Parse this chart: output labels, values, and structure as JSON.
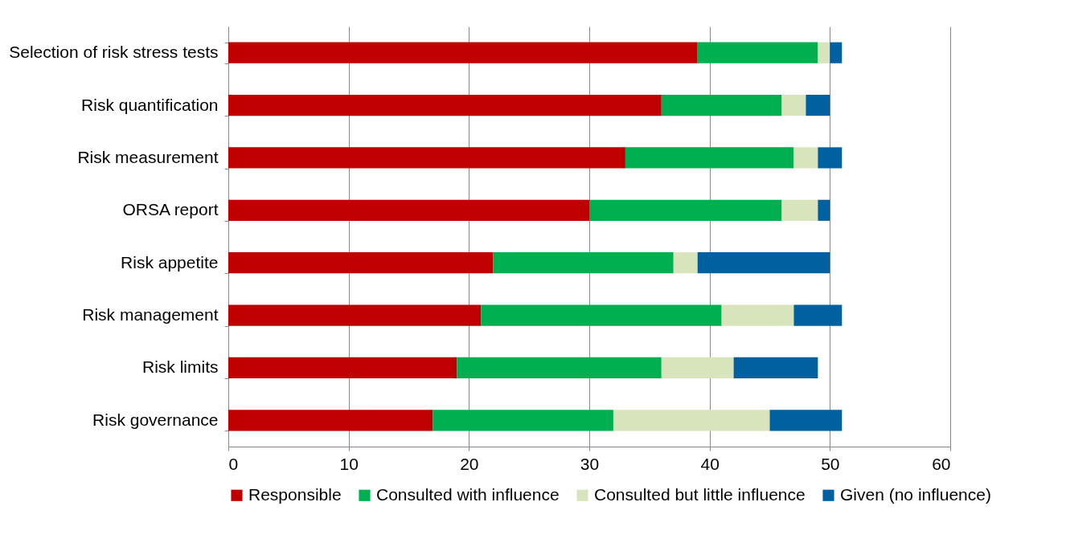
{
  "chart_data": {
    "type": "bar",
    "orientation": "horizontal",
    "stacked": true,
    "categories": [
      "Selection of risk stress tests",
      "Risk quantification",
      "Risk measurement",
      "ORSA report",
      "Risk appetite",
      "Risk management",
      "Risk limits",
      "Risk governance"
    ],
    "series": [
      {
        "name": "Responsible",
        "color": "#c00000",
        "values": [
          39,
          36,
          33,
          30,
          22,
          21,
          19,
          17
        ]
      },
      {
        "name": "Consulted with influence",
        "color": "#00b050",
        "values": [
          10,
          10,
          14,
          16,
          15,
          20,
          17,
          15
        ]
      },
      {
        "name": "Consulted but little influence",
        "color": "#d8e4bc",
        "values": [
          1,
          2,
          2,
          3,
          2,
          6,
          6,
          13
        ]
      },
      {
        "name": "Given (no influence)",
        "color": "#0060a0",
        "values": [
          1,
          2,
          2,
          1,
          11,
          4,
          7,
          6
        ]
      }
    ],
    "xlim": [
      0,
      60
    ],
    "xticks": [
      0,
      10,
      20,
      30,
      40,
      50,
      60
    ],
    "grid": "x",
    "legend": "bottom"
  }
}
